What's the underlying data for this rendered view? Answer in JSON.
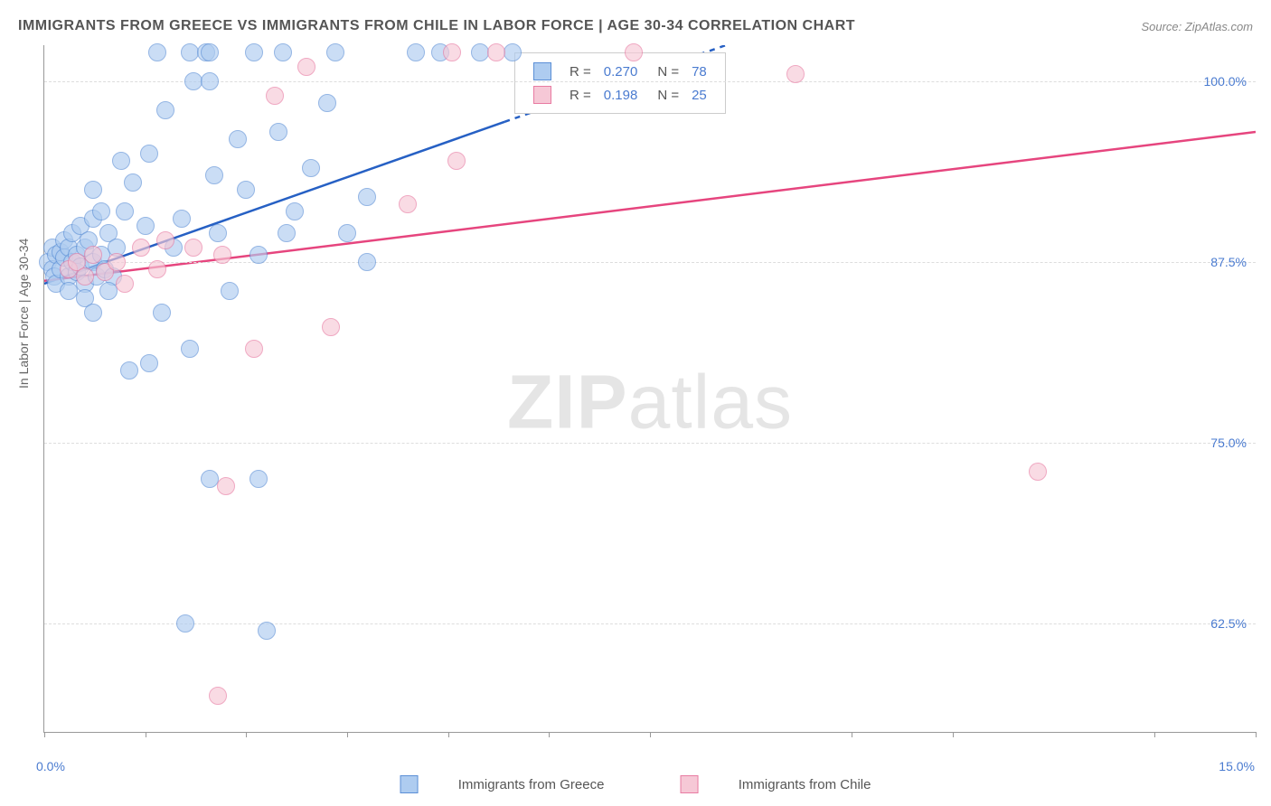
{
  "chart": {
    "title": "IMMIGRANTS FROM GREECE VS IMMIGRANTS FROM CHILE IN LABOR FORCE | AGE 30-34 CORRELATION CHART",
    "source": "Source: ZipAtlas.com",
    "y_axis_label": "In Labor Force | Age 30-34",
    "watermark_zip": "ZIP",
    "watermark_atlas": "atlas",
    "type": "scatter",
    "xlim": [
      0,
      15
    ],
    "ylim": [
      55,
      102.5
    ],
    "y_ticks": [
      62.5,
      75.0,
      87.5,
      100.0
    ],
    "y_tick_labels": [
      "62.5%",
      "75.0%",
      "87.5%",
      "100.0%"
    ],
    "x_ticks": [
      0,
      1.25,
      2.5,
      3.75,
      5.0,
      6.25,
      7.5,
      10.0,
      11.25,
      13.75,
      15.0
    ],
    "x_left_label": "0.0%",
    "x_right_label": "15.0%",
    "background_color": "#ffffff",
    "grid_color": "#dddddd",
    "axis_color": "#999999",
    "series": {
      "greece": {
        "label": "Immigrants from Greece",
        "fill": "#aeccf0",
        "stroke": "#5b8fd6",
        "opacity": 0.65,
        "marker_radius": 9,
        "line_color": "#2660c4",
        "line_width": 2.5,
        "line_start": {
          "x": 0,
          "y": 86
        },
        "line_end_solid": {
          "x": 5.7,
          "y": 97.2
        },
        "line_end_dashed": {
          "x": 8.7,
          "y": 103
        },
        "R": "0.270",
        "N": "78",
        "R_label": "R =",
        "N_label": "N =",
        "points": [
          {
            "x": 0.05,
            "y": 87.5
          },
          {
            "x": 0.1,
            "y": 87.0
          },
          {
            "x": 0.1,
            "y": 88.5
          },
          {
            "x": 0.12,
            "y": 86.5
          },
          {
            "x": 0.15,
            "y": 88.0
          },
          {
            "x": 0.15,
            "y": 86.0
          },
          {
            "x": 0.2,
            "y": 88.2
          },
          {
            "x": 0.2,
            "y": 87.0
          },
          {
            "x": 0.25,
            "y": 89.0
          },
          {
            "x": 0.25,
            "y": 87.8
          },
          {
            "x": 0.3,
            "y": 88.5
          },
          {
            "x": 0.3,
            "y": 86.5
          },
          {
            "x": 0.35,
            "y": 87.5
          },
          {
            "x": 0.35,
            "y": 89.5
          },
          {
            "x": 0.4,
            "y": 88.0
          },
          {
            "x": 0.4,
            "y": 86.8
          },
          {
            "x": 0.45,
            "y": 90.0
          },
          {
            "x": 0.45,
            "y": 87.2
          },
          {
            "x": 0.5,
            "y": 88.5
          },
          {
            "x": 0.5,
            "y": 86.0
          },
          {
            "x": 0.55,
            "y": 89.0
          },
          {
            "x": 0.6,
            "y": 87.5
          },
          {
            "x": 0.6,
            "y": 90.5
          },
          {
            "x": 0.65,
            "y": 86.5
          },
          {
            "x": 0.7,
            "y": 88.0
          },
          {
            "x": 0.7,
            "y": 91.0
          },
          {
            "x": 0.75,
            "y": 87.0
          },
          {
            "x": 0.8,
            "y": 89.5
          },
          {
            "x": 0.85,
            "y": 86.5
          },
          {
            "x": 0.9,
            "y": 88.5
          },
          {
            "x": 0.5,
            "y": 85.0
          },
          {
            "x": 0.6,
            "y": 84.0
          },
          {
            "x": 0.8,
            "y": 85.5
          },
          {
            "x": 0.3,
            "y": 85.5
          },
          {
            "x": 0.6,
            "y": 92.5
          },
          {
            "x": 0.95,
            "y": 94.5
          },
          {
            "x": 1.0,
            "y": 91.0
          },
          {
            "x": 1.1,
            "y": 93.0
          },
          {
            "x": 1.25,
            "y": 90.0
          },
          {
            "x": 1.3,
            "y": 95.0
          },
          {
            "x": 1.4,
            "y": 102.0
          },
          {
            "x": 1.45,
            "y": 84.0
          },
          {
            "x": 1.5,
            "y": 98.0
          },
          {
            "x": 1.6,
            "y": 88.5
          },
          {
            "x": 1.7,
            "y": 90.5
          },
          {
            "x": 1.8,
            "y": 102.0
          },
          {
            "x": 1.85,
            "y": 100.0
          },
          {
            "x": 2.0,
            "y": 102.0
          },
          {
            "x": 2.05,
            "y": 102.0
          },
          {
            "x": 2.05,
            "y": 100.0
          },
          {
            "x": 2.1,
            "y": 93.5
          },
          {
            "x": 2.15,
            "y": 89.5
          },
          {
            "x": 2.3,
            "y": 85.5
          },
          {
            "x": 2.4,
            "y": 96.0
          },
          {
            "x": 2.5,
            "y": 92.5
          },
          {
            "x": 2.6,
            "y": 102.0
          },
          {
            "x": 2.65,
            "y": 88.0
          },
          {
            "x": 2.9,
            "y": 96.5
          },
          {
            "x": 2.95,
            "y": 102.0
          },
          {
            "x": 3.0,
            "y": 89.5
          },
          {
            "x": 3.1,
            "y": 91.0
          },
          {
            "x": 3.3,
            "y": 94.0
          },
          {
            "x": 3.5,
            "y": 98.5
          },
          {
            "x": 3.6,
            "y": 102.0
          },
          {
            "x": 3.75,
            "y": 89.5
          },
          {
            "x": 4.0,
            "y": 87.5
          },
          {
            "x": 4.0,
            "y": 92.0
          },
          {
            "x": 4.6,
            "y": 102.0
          },
          {
            "x": 4.9,
            "y": 102.0
          },
          {
            "x": 5.4,
            "y": 102.0
          },
          {
            "x": 5.8,
            "y": 102.0
          },
          {
            "x": 1.05,
            "y": 80.0
          },
          {
            "x": 1.3,
            "y": 80.5
          },
          {
            "x": 1.8,
            "y": 81.5
          },
          {
            "x": 2.05,
            "y": 72.5
          },
          {
            "x": 2.65,
            "y": 72.5
          },
          {
            "x": 1.75,
            "y": 62.5
          },
          {
            "x": 2.75,
            "y": 62.0
          }
        ]
      },
      "chile": {
        "label": "Immigrants from Chile",
        "fill": "#f6c8d6",
        "stroke": "#e87ba2",
        "opacity": 0.65,
        "marker_radius": 9,
        "line_color": "#e6457e",
        "line_width": 2.5,
        "line_start": {
          "x": 0,
          "y": 86.2
        },
        "line_end": {
          "x": 15,
          "y": 96.5
        },
        "R": "0.198",
        "N": "25",
        "R_label": "R =",
        "N_label": "N =",
        "points": [
          {
            "x": 0.3,
            "y": 87.0
          },
          {
            "x": 0.4,
            "y": 87.5
          },
          {
            "x": 0.5,
            "y": 86.5
          },
          {
            "x": 0.6,
            "y": 88.0
          },
          {
            "x": 0.75,
            "y": 86.8
          },
          {
            "x": 0.9,
            "y": 87.5
          },
          {
            "x": 1.0,
            "y": 86.0
          },
          {
            "x": 1.2,
            "y": 88.5
          },
          {
            "x": 1.4,
            "y": 87.0
          },
          {
            "x": 1.5,
            "y": 89.0
          },
          {
            "x": 1.85,
            "y": 88.5
          },
          {
            "x": 2.2,
            "y": 88.0
          },
          {
            "x": 2.6,
            "y": 81.5
          },
          {
            "x": 2.85,
            "y": 99.0
          },
          {
            "x": 3.25,
            "y": 101.0
          },
          {
            "x": 3.55,
            "y": 83.0
          },
          {
            "x": 4.5,
            "y": 91.5
          },
          {
            "x": 5.05,
            "y": 102.0
          },
          {
            "x": 5.1,
            "y": 94.5
          },
          {
            "x": 5.6,
            "y": 102.0
          },
          {
            "x": 7.3,
            "y": 102.0
          },
          {
            "x": 9.3,
            "y": 100.5
          },
          {
            "x": 12.3,
            "y": 73.0
          },
          {
            "x": 2.15,
            "y": 57.5
          },
          {
            "x": 2.25,
            "y": 72.0
          }
        ]
      }
    }
  }
}
